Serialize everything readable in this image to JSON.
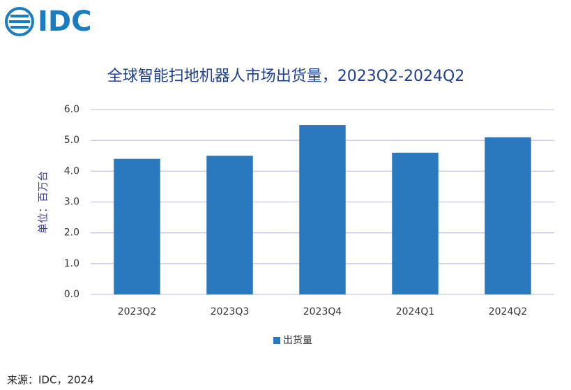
{
  "logo": "IDC",
  "source": "来源：IDC，2024",
  "chart_data": {
    "type": "bar",
    "title": "全球智能扫地机器人市场出货量，2023Q2-2024Q2",
    "y_label": "单位：百万台",
    "categories": [
      "2023Q2",
      "2023Q3",
      "2023Q4",
      "2024Q1",
      "2024Q2"
    ],
    "series": [
      {
        "name": "出货量",
        "color": "#2a78bd",
        "values": [
          4.4,
          4.5,
          5.5,
          4.6,
          5.1
        ]
      }
    ],
    "ylim": [
      0,
      6
    ],
    "yticks": [
      {
        "value": 0,
        "label": "0.0"
      },
      {
        "value": 1,
        "label": "1.0"
      },
      {
        "value": 2,
        "label": "2.0"
      },
      {
        "value": 3,
        "label": "3.0"
      },
      {
        "value": 4,
        "label": "4.0"
      },
      {
        "value": 5,
        "label": "5.0"
      },
      {
        "value": 6,
        "label": "6.0"
      }
    ],
    "grid": true,
    "legend": "bottom"
  }
}
